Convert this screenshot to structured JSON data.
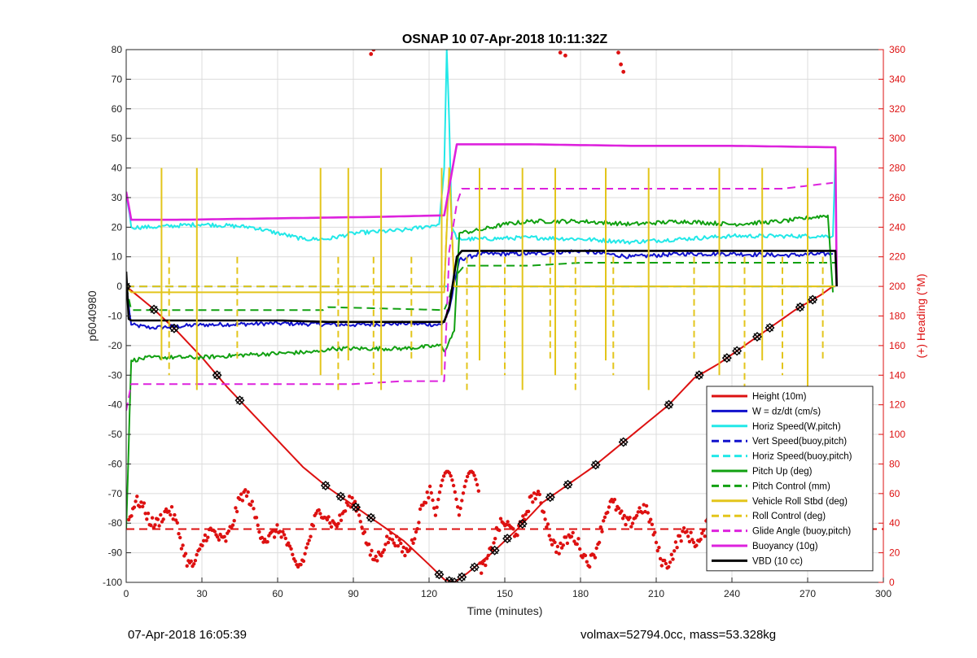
{
  "footer": {
    "timestamp": "07-Apr-2018 16:05:39",
    "volmax_mass": "volmax=52794.0cc, mass=53.328kg"
  },
  "chart_data": {
    "type": "line",
    "title": "OSNAP 10 07-Apr-2018 10:11:32Z",
    "xlabel": "Time (minutes)",
    "ylabel_left": "p6040980",
    "ylabel_right": "(+) Heading (°M)",
    "xlim": [
      0,
      300
    ],
    "ylim_left": [
      -100,
      80
    ],
    "ylim_right": [
      0,
      360
    ],
    "xticks": [
      0,
      30,
      60,
      90,
      120,
      150,
      180,
      210,
      240,
      270,
      300
    ],
    "yticks_left": [
      -100,
      -90,
      -80,
      -70,
      -60,
      -50,
      -40,
      -30,
      -20,
      -10,
      0,
      10,
      20,
      30,
      40,
      50,
      60,
      70,
      80
    ],
    "yticks_right": [
      0,
      20,
      40,
      60,
      80,
      100,
      120,
      140,
      160,
      180,
      200,
      220,
      240,
      260,
      280,
      300,
      320,
      340,
      360
    ],
    "grid": true,
    "legend_position": "bottom-right",
    "colors": {
      "red": "#dd1111",
      "blue": "#1111cc",
      "cyan": "#22e8e8",
      "green": "#11a011",
      "yellow": "#e3c51b",
      "magenta": "#dd22dd",
      "black": "#000000"
    },
    "series": [
      {
        "name": "Height (10m)",
        "color": "red",
        "dash": false,
        "x": [
          0,
          10,
          20,
          30,
          40,
          50,
          60,
          70,
          80,
          90,
          100,
          110,
          120,
          126,
          130,
          135,
          145,
          155,
          165,
          175,
          185,
          195,
          205,
          215,
          225,
          235,
          245,
          255,
          265,
          275,
          280
        ],
        "y": [
          0,
          -7,
          -15,
          -24,
          -34,
          -43,
          -52,
          -61,
          -68,
          -74,
          -80,
          -86,
          -94,
          -99,
          -100,
          -97,
          -90,
          -82,
          -73,
          -67,
          -61,
          -54,
          -47,
          -40,
          -31,
          -26,
          -20,
          -14,
          -8,
          -3,
          0
        ]
      },
      {
        "name": "W = dz/dt (cm/s)",
        "color": "blue",
        "dash": false,
        "x": [
          0,
          2,
          10,
          30,
          60,
          90,
          110,
          125,
          128,
          132,
          140,
          160,
          180,
          200,
          220,
          240,
          260,
          280
        ],
        "y": [
          0,
          -13,
          -14,
          -13,
          -12.5,
          -13,
          -12.5,
          -13,
          -8,
          9,
          11,
          11,
          12,
          10,
          11,
          11,
          10.5,
          11
        ]
      },
      {
        "name": "Horiz Speed(W,pitch)",
        "color": "cyan",
        "dash": false,
        "x": [
          0,
          2,
          10,
          30,
          50,
          70,
          80,
          90,
          110,
          124,
          126,
          127,
          128,
          129,
          131,
          140,
          160,
          180,
          200,
          220,
          240,
          260,
          280,
          281
        ],
        "y": [
          32,
          20,
          20,
          21,
          20,
          16,
          16,
          18,
          19,
          21,
          40,
          80,
          55,
          20,
          16,
          16,
          16.5,
          16,
          15,
          16,
          17,
          17,
          17,
          45
        ]
      },
      {
        "name": "Vert Speed(buoy,pitch)",
        "color": "blue",
        "dash": true,
        "x": [
          0,
          2,
          125,
          127,
          281
        ],
        "y": [
          0,
          0,
          0,
          0,
          0
        ]
      },
      {
        "name": "Horiz Speed(buoy,pitch)",
        "color": "cyan",
        "dash": true,
        "x": [
          0,
          2,
          120,
          128,
          281
        ],
        "y": [
          0,
          0,
          0,
          0,
          0
        ]
      },
      {
        "name": "Pitch Up (deg)",
        "color": "green",
        "dash": false,
        "x": [
          0,
          2,
          10,
          30,
          50,
          78,
          80,
          110,
          125,
          126,
          130,
          132,
          140,
          150,
          160,
          180,
          200,
          220,
          240,
          260,
          278,
          280
        ],
        "y": [
          -82,
          -25,
          -24,
          -24,
          -23,
          -22,
          -21,
          -21,
          -20,
          -22,
          -15,
          18,
          19,
          21,
          22,
          22,
          21,
          22,
          21,
          22,
          24,
          -2
        ]
      },
      {
        "name": "Pitch Control (mm)",
        "color": "green",
        "dash": true,
        "x": [
          0,
          2,
          78,
          80,
          126,
          128,
          130,
          134,
          160,
          180,
          200,
          230,
          260,
          281
        ],
        "y": [
          0,
          -8,
          -8,
          -7,
          -8,
          -4,
          3,
          7,
          7,
          8,
          8,
          8,
          8,
          8
        ]
      },
      {
        "name": "Vehicle Roll Stbd (deg)",
        "color": "yellow",
        "dash": false,
        "x": [
          0,
          2,
          60,
          100,
          126,
          128,
          130,
          132,
          160,
          200,
          240,
          281
        ],
        "y": [
          0,
          -2,
          -2,
          -2,
          -2,
          40,
          0,
          0,
          0,
          0,
          0,
          0
        ]
      },
      {
        "name": "Roll Control (deg)",
        "color": "yellow",
        "dash": true,
        "x": [
          0,
          2,
          126,
          128,
          130,
          281
        ],
        "y": [
          0,
          0,
          0,
          40,
          0,
          0
        ]
      },
      {
        "name": "Glide Angle (buoy,pitch)",
        "color": "magenta",
        "dash": true,
        "x": [
          0,
          2,
          10,
          30,
          60,
          90,
          110,
          126,
          128,
          131,
          133,
          150,
          170,
          200,
          230,
          260,
          280
        ],
        "y": [
          -42,
          -33,
          -33,
          -33,
          -33,
          -33,
          -32,
          -32,
          12,
          28,
          33,
          33,
          33,
          33,
          33,
          33,
          35
        ]
      },
      {
        "name": "Buoyancy (10g)",
        "color": "magenta",
        "dash": false,
        "x": [
          0,
          2,
          20,
          60,
          100,
          126,
          131,
          135,
          160,
          200,
          240,
          281,
          281.5
        ],
        "y": [
          32,
          22.5,
          22.5,
          23,
          23.5,
          24,
          48,
          48,
          48,
          47.5,
          47.5,
          47,
          0
        ]
      },
      {
        "name": "VBD (10 cc)",
        "color": "black",
        "dash": false,
        "x": [
          0,
          1,
          2,
          20,
          40,
          60,
          80,
          100,
          126,
          128,
          131,
          133,
          160,
          200,
          240,
          281,
          281.5
        ],
        "y": [
          5,
          -11,
          -11.5,
          -11.5,
          -11.5,
          -11.5,
          -12,
          -12,
          -12,
          -7,
          10,
          12,
          12,
          12,
          12,
          12,
          0
        ]
      }
    ],
    "heading_reference_deg": 36
  }
}
